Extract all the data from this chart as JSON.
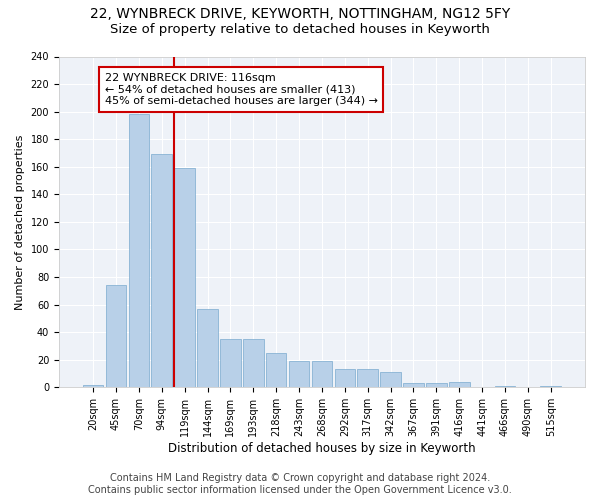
{
  "title": "22, WYNBRECK DRIVE, KEYWORTH, NOTTINGHAM, NG12 5FY",
  "subtitle": "Size of property relative to detached houses in Keyworth",
  "xlabel": "Distribution of detached houses by size in Keyworth",
  "ylabel": "Number of detached properties",
  "categories": [
    "20sqm",
    "45sqm",
    "70sqm",
    "94sqm",
    "119sqm",
    "144sqm",
    "169sqm",
    "193sqm",
    "218sqm",
    "243sqm",
    "268sqm",
    "292sqm",
    "317sqm",
    "342sqm",
    "367sqm",
    "391sqm",
    "416sqm",
    "441sqm",
    "466sqm",
    "490sqm",
    "515sqm"
  ],
  "values": [
    2,
    74,
    198,
    169,
    159,
    57,
    35,
    35,
    25,
    19,
    19,
    13,
    13,
    11,
    3,
    3,
    4,
    0,
    1,
    0,
    1
  ],
  "bar_color": "#b8d0e8",
  "bar_edge_color": "#7aaace",
  "vline_x_index": 4,
  "annotation_text": "22 WYNBRECK DRIVE: 116sqm\n← 54% of detached houses are smaller (413)\n45% of semi-detached houses are larger (344) →",
  "annotation_box_color": "#ffffff",
  "annotation_box_edge_color": "#cc0000",
  "vline_color": "#cc0000",
  "ylim": [
    0,
    240
  ],
  "yticks": [
    0,
    20,
    40,
    60,
    80,
    100,
    120,
    140,
    160,
    180,
    200,
    220,
    240
  ],
  "footer_line1": "Contains HM Land Registry data © Crown copyright and database right 2024.",
  "footer_line2": "Contains public sector information licensed under the Open Government Licence v3.0.",
  "bg_color": "#ffffff",
  "plot_bg_color": "#eef2f8",
  "grid_color": "#ffffff",
  "title_fontsize": 10,
  "subtitle_fontsize": 9.5,
  "xlabel_fontsize": 8.5,
  "ylabel_fontsize": 8,
  "tick_fontsize": 7,
  "footer_fontsize": 7,
  "annotation_fontsize": 8
}
